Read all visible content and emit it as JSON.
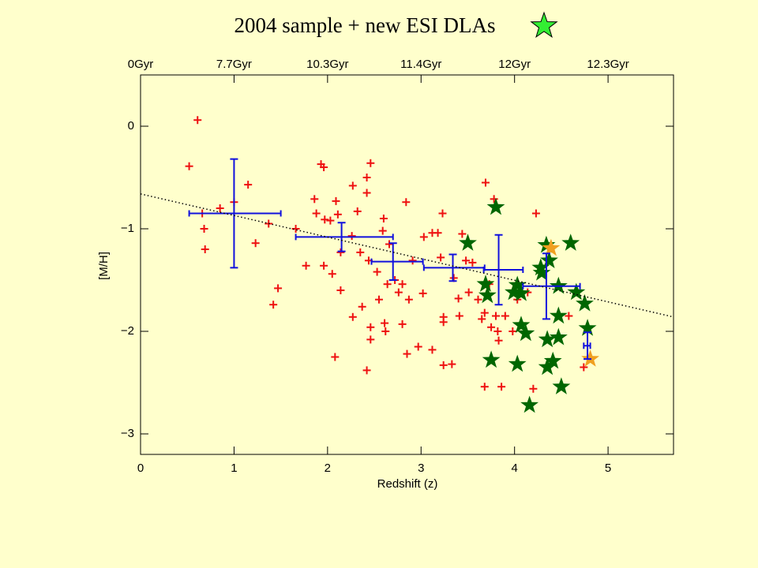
{
  "chart_data": {
    "type": "scatter",
    "title": "2004 sample + new ESI DLAs",
    "xlabel": "Redshift (z)",
    "ylabel": "[M/H]",
    "xlim": [
      0,
      5.7
    ],
    "ylim": [
      -3.2,
      0.5
    ],
    "xticks": [
      0,
      1,
      2,
      3,
      4,
      5
    ],
    "yticks": [
      {
        "value": -3,
        "label": "−3"
      },
      {
        "value": -2,
        "label": "−2"
      },
      {
        "value": -1,
        "label": "−1"
      },
      0
    ],
    "top_xticks": [
      {
        "value": 0,
        "label": "0Gyr"
      },
      {
        "value": 1,
        "label": "7.7Gyr"
      },
      {
        "value": 2,
        "label": "10.3Gyr"
      },
      {
        "value": 3,
        "label": "11.4Gyr"
      },
      {
        "value": 4,
        "label": "12Gyr"
      },
      {
        "value": 5,
        "label": "12.3Gyr"
      }
    ],
    "title_marker_color": "#33ee33",
    "series": [
      {
        "marker": "plus",
        "color": "#ee1111",
        "x": [
          0.61,
          0.52,
          0.66,
          0.68,
          0.69,
          0.85,
          1.0,
          1.15,
          1.23,
          1.37,
          1.47,
          1.42,
          1.66,
          1.77,
          1.86,
          1.88,
          1.93,
          1.96,
          1.97,
          1.96,
          2.03,
          2.05,
          2.09,
          2.11,
          2.08,
          2.14,
          2.14,
          2.26,
          2.27,
          2.32,
          2.27,
          2.35,
          2.37,
          2.42,
          2.42,
          2.46,
          2.42,
          2.44,
          2.46,
          2.46,
          2.53,
          2.55,
          2.59,
          2.6,
          2.61,
          2.62,
          2.64,
          2.66,
          2.72,
          2.76,
          2.8,
          2.8,
          2.84,
          2.85,
          2.87,
          2.91,
          2.97,
          3.02,
          3.03,
          3.12,
          3.12,
          3.18,
          3.21,
          3.23,
          3.24,
          3.24,
          3.24,
          3.33,
          3.35,
          3.4,
          3.41,
          3.44,
          3.48,
          3.51,
          3.55,
          3.61,
          3.65,
          3.68,
          3.68,
          3.69,
          3.73,
          3.75,
          3.78,
          3.8,
          3.82,
          3.83,
          3.86,
          3.9,
          3.98,
          4.03,
          4.14,
          4.2,
          4.23,
          4.58,
          4.74
        ],
        "values": [
          0.06,
          -0.39,
          -0.85,
          -1.0,
          -1.2,
          -0.8,
          -0.74,
          -0.57,
          -1.14,
          -0.95,
          -1.58,
          -1.74,
          -1.0,
          -1.36,
          -0.71,
          -0.85,
          -0.37,
          -0.4,
          -0.91,
          -1.36,
          -0.92,
          -1.44,
          -0.73,
          -0.86,
          -2.25,
          -1.23,
          -1.6,
          -1.07,
          -0.58,
          -0.83,
          -1.86,
          -1.23,
          -1.76,
          -0.65,
          -0.5,
          -0.36,
          -2.38,
          -1.31,
          -1.96,
          -2.08,
          -1.42,
          -1.69,
          -1.02,
          -0.9,
          -1.92,
          -2.0,
          -1.54,
          -1.15,
          -1.5,
          -1.62,
          -1.54,
          -1.93,
          -0.74,
          -2.22,
          -1.69,
          -1.31,
          -2.15,
          -1.63,
          -1.08,
          -1.04,
          -2.18,
          -1.04,
          -1.28,
          -0.85,
          -1.86,
          -1.91,
          -2.33,
          -2.32,
          -1.48,
          -1.68,
          -1.85,
          -1.05,
          -1.31,
          -1.62,
          -1.33,
          -1.69,
          -1.88,
          -1.82,
          -2.54,
          -0.55,
          -1.54,
          -1.96,
          -0.71,
          -1.85,
          -2.0,
          -2.09,
          -2.54,
          -1.85,
          -2.0,
          -1.69,
          -1.62,
          -2.56,
          -0.85,
          -1.85,
          -2.35
        ]
      },
      {
        "marker": "star",
        "color": "#006600",
        "x": [
          3.8,
          3.5,
          4.6,
          4.34,
          4.37,
          4.28,
          4.29,
          3.69,
          3.71,
          4.03,
          4.07,
          3.99,
          4.47,
          4.66,
          4.75,
          4.47,
          4.07,
          4.12,
          4.78,
          4.35,
          4.47,
          3.75,
          4.03,
          4.41,
          4.35,
          4.5,
          4.16
        ],
        "values": [
          -0.79,
          -1.14,
          -1.14,
          -1.16,
          -1.31,
          -1.38,
          -1.43,
          -1.54,
          -1.65,
          -1.55,
          -1.63,
          -1.62,
          -1.56,
          -1.62,
          -1.73,
          -1.85,
          -1.94,
          -2.02,
          -1.97,
          -2.08,
          -2.06,
          -2.28,
          -2.32,
          -2.29,
          -2.35,
          -2.54,
          -2.72
        ]
      },
      {
        "marker": "star",
        "color": "#f0a020",
        "x": [
          4.39,
          4.81
        ],
        "values": [
          -1.19,
          -2.27
        ]
      },
      {
        "marker": "errorbar",
        "color": "#1111dd",
        "x": [
          1.0,
          2.15,
          2.7,
          3.34,
          3.83,
          4.34,
          4.78
        ],
        "values": [
          -0.85,
          -1.08,
          -1.32,
          -1.38,
          -1.4,
          -1.56,
          -2.14
        ],
        "x_low": [
          0.52,
          1.66,
          2.47,
          3.03,
          3.67,
          4.09,
          4.74
        ],
        "x_high": [
          1.5,
          2.7,
          3.02,
          3.68,
          4.09,
          4.7,
          4.81
        ],
        "yerr": [
          0.53,
          0.14,
          0.18,
          0.13,
          0.34,
          0.32,
          0.13
        ]
      },
      {
        "marker": "dotted-line",
        "color": "#000000",
        "x": [
          0,
          5.7
        ],
        "values": [
          -0.66,
          -1.86
        ]
      }
    ]
  }
}
